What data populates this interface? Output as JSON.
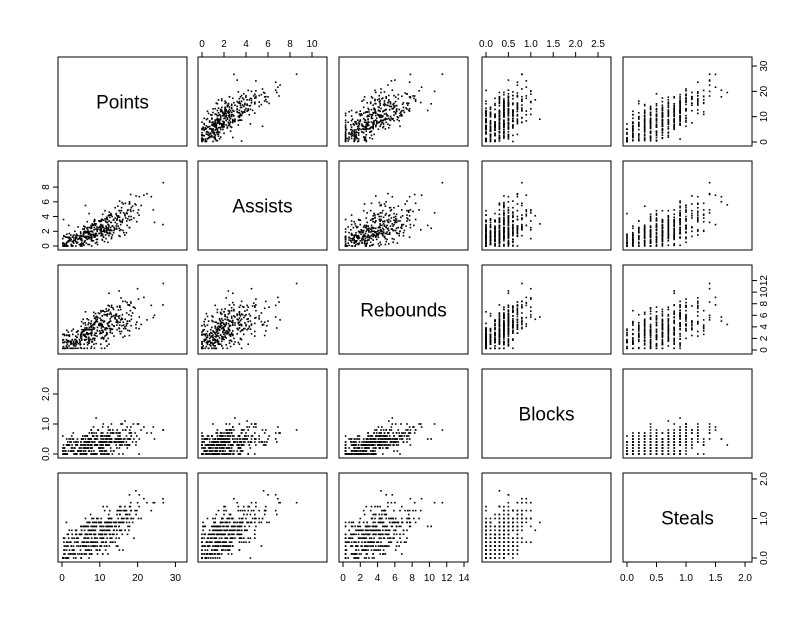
{
  "chart_data": {
    "type": "scatter-matrix",
    "variables": [
      {
        "name": "Points",
        "range": [
          0,
          32
        ],
        "ticks": [
          0,
          10,
          20,
          30
        ],
        "tick_labels": [
          "0",
          "10",
          "20",
          "30"
        ],
        "axis_side": "right"
      },
      {
        "name": "Assists",
        "range": [
          0,
          11
        ],
        "ticks": [
          0,
          2,
          4,
          6,
          8,
          10
        ],
        "tick_labels": [
          "0",
          "2",
          "4",
          "6",
          "8",
          "10"
        ],
        "top_ticks": [
          0,
          2,
          4,
          6,
          8,
          10
        ],
        "left_ticks": [
          0,
          2,
          4,
          6,
          8
        ]
      },
      {
        "name": "Rebounds",
        "range": [
          0,
          14
        ],
        "ticks": [
          0,
          2,
          4,
          6,
          8,
          10,
          12,
          14
        ],
        "tick_labels": [
          "0",
          "2",
          "4",
          "6",
          "8",
          "10",
          "12",
          "14"
        ],
        "right_ticks": [
          0,
          2,
          4,
          6,
          8,
          10,
          12
        ]
      },
      {
        "name": "Blocks",
        "range": [
          0,
          2.7
        ],
        "ticks": [
          0,
          0.5,
          1.0,
          1.5,
          2.0,
          2.5
        ],
        "tick_labels": [
          "0.0",
          "0.5",
          "1.0",
          "1.5",
          "2.0",
          "2.5"
        ],
        "left_ticks": [
          0,
          1.0,
          2.0
        ]
      },
      {
        "name": "Steals",
        "range": [
          0,
          2.05
        ],
        "ticks": [
          0,
          0.5,
          1.0,
          1.5,
          2.0
        ],
        "tick_labels": [
          "0.0",
          "0.5",
          "1.0",
          "1.5",
          "2.0"
        ],
        "right_ticks": [
          0,
          1.0,
          2.0
        ]
      }
    ],
    "observations": {
      "count": 400,
      "description_note": "",
      "points": []
    },
    "colors": {
      "points": "#000000",
      "frame": "#000000",
      "background": "#ffffff"
    }
  }
}
